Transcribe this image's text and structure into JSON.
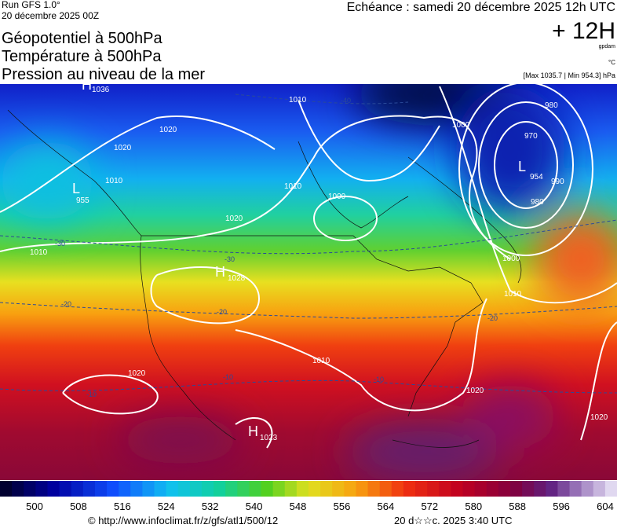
{
  "header": {
    "run": "Run GFS 1.0°",
    "date": "20 décembre 2025 00Z",
    "titles": [
      "Géopotentiel à 500hPa",
      "Température à 500hPa",
      "Pression au niveau de la mer"
    ],
    "echeance": "Echéance : samedi 20 décembre 2025 12h UTC",
    "offset": "+ 12H",
    "unit_geo": "gpdam",
    "unit_temp": "°C",
    "pressure_range": "[Max 1035.7 | Min 954.3] hPa"
  },
  "map": {
    "pressure_labels": [
      "H",
      "1036",
      "L",
      "955",
      "1020",
      "1020",
      "1010",
      "1010",
      "1000",
      "1010",
      "1020",
      "1010",
      "H",
      "1028",
      "1000",
      "980",
      "970",
      "L",
      "954",
      "990",
      "980",
      "1000",
      "1010",
      "1020",
      "H",
      "1023",
      "1020",
      "1020",
      "1010"
    ],
    "temperature_labels": [
      "-40",
      "-30",
      "-30",
      "-20",
      "-20",
      "-20",
      "-10",
      "-10",
      "-10"
    ]
  },
  "colorbar": {
    "labels": [
      "500",
      "508",
      "516",
      "524",
      "532",
      "540",
      "548",
      "556",
      "564",
      "572",
      "580",
      "588",
      "596",
      "604"
    ]
  },
  "footer": {
    "url": "© http://www.infoclimat.fr/z/gfs/atl1/500/12",
    "time": "20 d☆☆c. 2025  3:40 UTC"
  }
}
